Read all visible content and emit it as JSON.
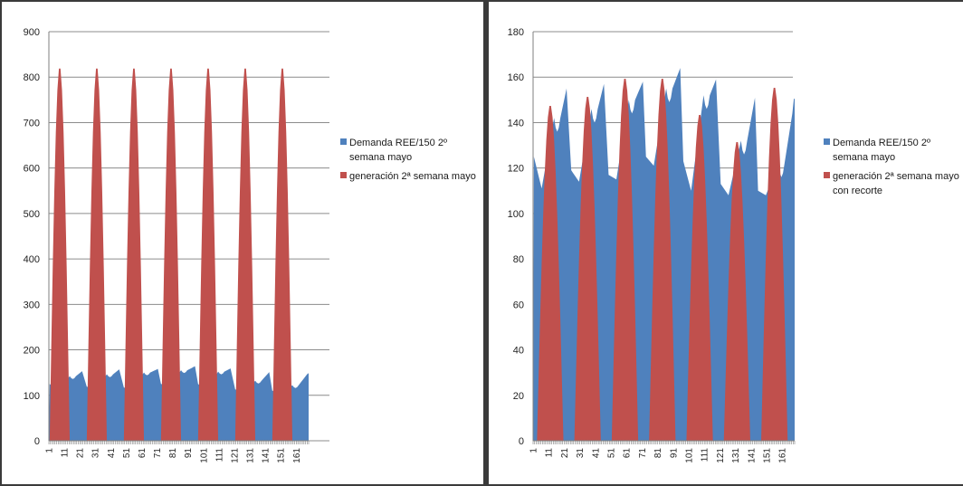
{
  "chart_data": [
    {
      "type": "area",
      "ylim": [
        0,
        900
      ],
      "yticks": [
        0,
        100,
        200,
        300,
        400,
        500,
        600,
        700,
        800,
        900
      ],
      "x_count": 168,
      "xtick_labels": [
        "1",
        "11",
        "21",
        "31",
        "41",
        "51",
        "61",
        "71",
        "81",
        "91",
        "101",
        "111",
        "121",
        "131",
        "141",
        "151",
        "161"
      ],
      "grid": "horizontal",
      "legend_position": "right",
      "series": [
        {
          "name": "Demanda REE/150 2º semana mayo",
          "color": "#4f81bd",
          "day_profiles": [
            {
              "start": 125,
              "valley": 111,
              "peak1": 142,
              "peak2": 153,
              "peak_hour": 21
            },
            {
              "start": 119,
              "valley": 115,
              "peak1": 146,
              "peak2": 157,
              "peak_hour": 21
            },
            {
              "start": 117,
              "valley": 114,
              "peak1": 150,
              "peak2": 158,
              "peak_hour": 22
            },
            {
              "start": 125,
              "valley": 121,
              "peak1": 155,
              "peak2": 164,
              "peak_hour": 22
            },
            {
              "start": 125,
              "valley": 111,
              "peak1": 152,
              "peak2": 159,
              "peak_hour": 21
            },
            {
              "start": 113,
              "valley": 108,
              "peak1": 132,
              "peak2": 151,
              "peak_hour": 22
            },
            {
              "start": 110,
              "valley": 108,
              "peak1": 122,
              "peak2": 144,
              "peak_hour": 22
            }
          ],
          "end_value": 152
        },
        {
          "name": "generación 2ª semana mayo",
          "color": "#c0504d",
          "day_starts": [
            1,
            25,
            49,
            73,
            97,
            121,
            145
          ],
          "width": 13,
          "peaks": [
            825,
            825,
            825,
            825,
            825,
            825,
            825
          ]
        }
      ]
    },
    {
      "type": "area",
      "ylim": [
        0,
        180
      ],
      "yticks": [
        0,
        20,
        40,
        60,
        80,
        100,
        120,
        140,
        160,
        180
      ],
      "x_count": 168,
      "xtick_labels": [
        "1",
        "11",
        "21",
        "31",
        "41",
        "51",
        "61",
        "71",
        "81",
        "91",
        "101",
        "111",
        "121",
        "131",
        "141",
        "151",
        "161"
      ],
      "grid": "horizontal",
      "legend_position": "right",
      "series": [
        {
          "name": "Demanda REE/150 2º semana mayo",
          "color": "#4f81bd",
          "day_profiles": [
            {
              "start": 125,
              "valley": 111,
              "peak1": 142,
              "peak2": 155,
              "peak_hour": 21
            },
            {
              "start": 119,
              "valley": 114,
              "peak1": 146,
              "peak2": 157,
              "peak_hour": 21
            },
            {
              "start": 117,
              "valley": 115,
              "peak1": 150,
              "peak2": 158,
              "peak_hour": 22
            },
            {
              "start": 125,
              "valley": 121,
              "peak1": 155,
              "peak2": 164,
              "peak_hour": 22
            },
            {
              "start": 123,
              "valley": 110,
              "peak1": 152,
              "peak2": 159,
              "peak_hour": 21
            },
            {
              "start": 113,
              "valley": 108,
              "peak1": 132,
              "peak2": 151,
              "peak_hour": 22
            },
            {
              "start": 110,
              "valley": 108,
              "peak1": 122,
              "peak2": 144,
              "peak_hour": 22
            }
          ],
          "end_value": 157
        },
        {
          "name": "generación 2ª semana mayo con recorte",
          "color": "#c0504d",
          "day_starts": [
            3,
            27,
            51,
            75,
            99,
            123,
            147
          ],
          "width": 17,
          "peaks": [
            148,
            152,
            160,
            160,
            144,
            132,
            156
          ]
        }
      ]
    }
  ],
  "legends": [
    {
      "blue_lines": [
        "Demanda REE/150 2º",
        "semana mayo"
      ],
      "red_lines": [
        "generación 2ª semana mayo"
      ]
    },
    {
      "blue_lines": [
        "Demanda REE/150 2º",
        "semana mayo"
      ],
      "red_lines": [
        "generación 2ª semana mayo",
        "con recorte"
      ]
    }
  ]
}
